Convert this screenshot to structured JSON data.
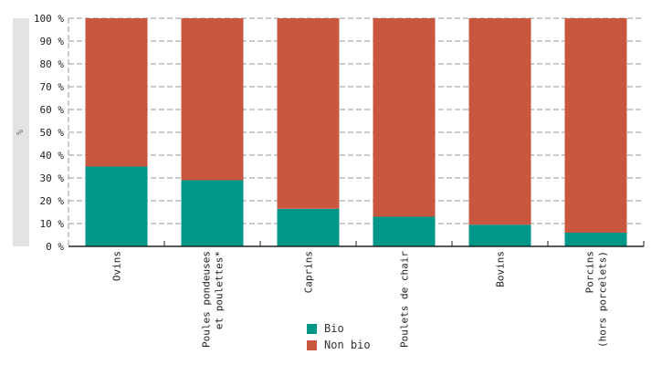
{
  "chart_data": {
    "type": "bar",
    "stacked": true,
    "unit": "%",
    "categories": [
      [
        "Ovins"
      ],
      [
        "Poules pondeuses",
        "et poulettes*"
      ],
      [
        "Caprins"
      ],
      [
        "Poulets de chair"
      ],
      [
        "Bovins"
      ],
      [
        "Porcins",
        "(hors porcelets)"
      ]
    ],
    "series": [
      {
        "name": "Bio",
        "color": "#009688",
        "values": [
          35,
          29,
          16.5,
          13,
          9.5,
          6
        ]
      },
      {
        "name": "Non bio",
        "color": "#c9573f",
        "values": [
          65,
          71,
          83.5,
          87,
          90.5,
          94
        ]
      }
    ],
    "ylim": [
      0,
      100
    ],
    "yticks": [
      "0 %",
      "10 %",
      "20 %",
      "30 %",
      "40 %",
      "50 %",
      "60 %",
      "70 %",
      "80 %",
      "90 %",
      "100 %"
    ],
    "ytick_values": [
      0,
      10,
      20,
      30,
      40,
      50,
      60,
      70,
      80,
      90,
      100
    ],
    "grid": true,
    "legend_position": "bottom"
  },
  "legend": {
    "items": [
      {
        "label": "Bio",
        "color": "#009688"
      },
      {
        "label": "Non bio",
        "color": "#c9573f"
      }
    ]
  }
}
